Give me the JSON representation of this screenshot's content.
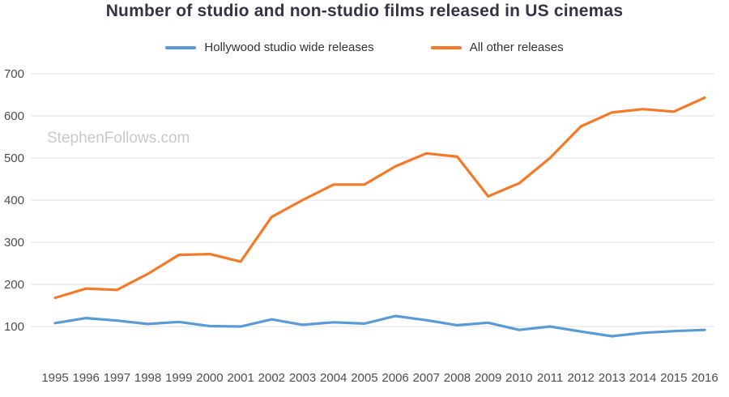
{
  "watermark": "StephenFollows.com",
  "colors": {
    "grid": "#e2e2e2",
    "axis_text": "#4d4d4d",
    "watermark_text": "#c9c9c9",
    "title_text": "#343444"
  },
  "chart_data": {
    "type": "line",
    "title": "Number of studio and non-studio films released in US cinemas",
    "categories": [
      1995,
      1996,
      1997,
      1998,
      1999,
      2000,
      2001,
      2002,
      2003,
      2004,
      2005,
      2006,
      2007,
      2008,
      2009,
      2010,
      2011,
      2012,
      2013,
      2014,
      2015,
      2016
    ],
    "series": [
      {
        "name": "Hollywood studio wide releases",
        "color": "#5b9bd5",
        "values": [
          108,
          120,
          114,
          106,
          111,
          101,
          100,
          117,
          104,
          110,
          107,
          125,
          115,
          103,
          109,
          92,
          100,
          88,
          77,
          85,
          89,
          92
        ]
      },
      {
        "name": "All other releases",
        "color": "#f47928",
        "values": [
          168,
          190,
          187,
          225,
          270,
          272,
          254,
          360,
          400,
          437,
          437,
          480,
          511,
          503,
          409,
          440,
          500,
          575,
          608,
          616,
          610,
          643
        ]
      }
    ],
    "xlabel": "",
    "ylabel": "",
    "ylim": [
      0,
      700
    ],
    "ytick_step": 100,
    "grid": true,
    "legend_position": "top"
  }
}
